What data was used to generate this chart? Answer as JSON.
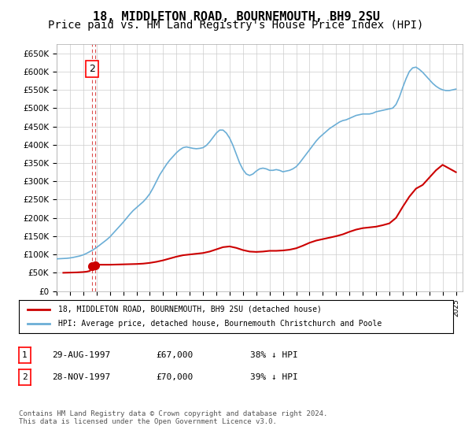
{
  "title": "18, MIDDLETON ROAD, BOURNEMOUTH, BH9 2SU",
  "subtitle": "Price paid vs. HM Land Registry's House Price Index (HPI)",
  "title_fontsize": 11,
  "subtitle_fontsize": 10,
  "hpi_color": "#6baed6",
  "price_color": "#cc0000",
  "grid_color": "#cccccc",
  "bg_color": "#ffffff",
  "ylim": [
    0,
    675000
  ],
  "yticks": [
    0,
    50000,
    100000,
    150000,
    200000,
    250000,
    300000,
    350000,
    400000,
    450000,
    500000,
    550000,
    600000,
    650000
  ],
  "ytick_labels": [
    "£0",
    "£50K",
    "£100K",
    "£150K",
    "£200K",
    "£250K",
    "£300K",
    "£350K",
    "£400K",
    "£450K",
    "£500K",
    "£550K",
    "£600K",
    "£650K"
  ],
  "xlim_start": 1995.0,
  "xlim_end": 2025.5,
  "sale1_date": 1997.66,
  "sale1_price": 67000,
  "sale1_label": "1",
  "sale2_date": 1997.91,
  "sale2_price": 70000,
  "sale2_label": "2",
  "legend_line1": "18, MIDDLETON ROAD, BOURNEMOUTH, BH9 2SU (detached house)",
  "legend_line2": "HPI: Average price, detached house, Bournemouth Christchurch and Poole",
  "table_rows": [
    {
      "num": "1",
      "date": "29-AUG-1997",
      "price": "£67,000",
      "hpi": "38% ↓ HPI"
    },
    {
      "num": "2",
      "date": "28-NOV-1997",
      "price": "£70,000",
      "hpi": "39% ↓ HPI"
    }
  ],
  "footnote": "Contains HM Land Registry data © Crown copyright and database right 2024.\nThis data is licensed under the Open Government Licence v3.0.",
  "hpi_x": [
    1995.0,
    1995.25,
    1995.5,
    1995.75,
    1996.0,
    1996.25,
    1996.5,
    1996.75,
    1997.0,
    1997.25,
    1997.5,
    1997.75,
    1998.0,
    1998.25,
    1998.5,
    1998.75,
    1999.0,
    1999.25,
    1999.5,
    1999.75,
    2000.0,
    2000.25,
    2000.5,
    2000.75,
    2001.0,
    2001.25,
    2001.5,
    2001.75,
    2002.0,
    2002.25,
    2002.5,
    2002.75,
    2003.0,
    2003.25,
    2003.5,
    2003.75,
    2004.0,
    2004.25,
    2004.5,
    2004.75,
    2005.0,
    2005.25,
    2005.5,
    2005.75,
    2006.0,
    2006.25,
    2006.5,
    2006.75,
    2007.0,
    2007.25,
    2007.5,
    2007.75,
    2008.0,
    2008.25,
    2008.5,
    2008.75,
    2009.0,
    2009.25,
    2009.5,
    2009.75,
    2010.0,
    2010.25,
    2010.5,
    2010.75,
    2011.0,
    2011.25,
    2011.5,
    2011.75,
    2012.0,
    2012.25,
    2012.5,
    2012.75,
    2013.0,
    2013.25,
    2013.5,
    2013.75,
    2014.0,
    2014.25,
    2014.5,
    2014.75,
    2015.0,
    2015.25,
    2015.5,
    2015.75,
    2016.0,
    2016.25,
    2016.5,
    2016.75,
    2017.0,
    2017.25,
    2017.5,
    2017.75,
    2018.0,
    2018.25,
    2018.5,
    2018.75,
    2019.0,
    2019.25,
    2019.5,
    2019.75,
    2020.0,
    2020.25,
    2020.5,
    2020.75,
    2021.0,
    2021.25,
    2021.5,
    2021.75,
    2022.0,
    2022.25,
    2022.5,
    2022.75,
    2023.0,
    2023.25,
    2023.5,
    2023.75,
    2024.0,
    2024.25,
    2024.5,
    2024.75,
    2025.0
  ],
  "hpi_y": [
    88000,
    88500,
    89000,
    89500,
    90500,
    92000,
    94000,
    96000,
    99000,
    103000,
    108000,
    113000,
    119000,
    126000,
    133000,
    140000,
    148000,
    158000,
    168000,
    178000,
    188000,
    199000,
    210000,
    220000,
    228000,
    236000,
    244000,
    254000,
    266000,
    282000,
    300000,
    318000,
    332000,
    346000,
    358000,
    368000,
    378000,
    386000,
    392000,
    394000,
    392000,
    390000,
    389000,
    390000,
    392000,
    398000,
    408000,
    420000,
    432000,
    440000,
    440000,
    432000,
    418000,
    398000,
    374000,
    350000,
    332000,
    320000,
    316000,
    320000,
    328000,
    334000,
    336000,
    334000,
    330000,
    330000,
    332000,
    330000,
    326000,
    328000,
    330000,
    334000,
    340000,
    350000,
    362000,
    374000,
    386000,
    398000,
    410000,
    420000,
    428000,
    436000,
    444000,
    450000,
    456000,
    462000,
    466000,
    468000,
    472000,
    476000,
    480000,
    482000,
    484000,
    484000,
    484000,
    486000,
    490000,
    492000,
    494000,
    496000,
    498000,
    500000,
    510000,
    530000,
    556000,
    580000,
    600000,
    610000,
    612000,
    606000,
    598000,
    588000,
    578000,
    568000,
    560000,
    554000,
    550000,
    548000,
    548000,
    550000,
    552000
  ],
  "price_x": [
    1995.5,
    1996.0,
    1996.5,
    1997.0,
    1997.25,
    1997.5,
    1997.66,
    1997.91,
    1998.0,
    1998.5,
    1999.0,
    1999.5,
    2000.0,
    2000.5,
    2001.0,
    2001.5,
    2002.0,
    2002.5,
    2003.0,
    2003.5,
    2004.0,
    2004.25,
    2004.5,
    2005.0,
    2005.5,
    2006.0,
    2006.5,
    2007.0,
    2007.5,
    2008.0,
    2008.5,
    2009.0,
    2009.5,
    2010.0,
    2010.5,
    2011.0,
    2011.5,
    2012.0,
    2012.5,
    2013.0,
    2013.5,
    2014.0,
    2014.5,
    2015.0,
    2015.5,
    2016.0,
    2016.5,
    2017.0,
    2017.5,
    2018.0,
    2018.5,
    2019.0,
    2019.5,
    2020.0,
    2020.5,
    2021.0,
    2021.5,
    2022.0,
    2022.5,
    2023.0,
    2023.5,
    2024.0,
    2024.5,
    2025.0
  ],
  "price_y": [
    50000,
    50500,
    51000,
    52000,
    53000,
    55000,
    67000,
    70000,
    72000,
    72000,
    72000,
    72500,
    73000,
    73500,
    74000,
    75000,
    77000,
    80000,
    84000,
    89000,
    94000,
    96000,
    98000,
    100000,
    102000,
    104000,
    108000,
    114000,
    120000,
    122000,
    118000,
    112000,
    108000,
    107000,
    108000,
    110000,
    110000,
    111000,
    113000,
    117000,
    124000,
    132000,
    138000,
    142000,
    146000,
    150000,
    155000,
    162000,
    168000,
    172000,
    174000,
    176000,
    180000,
    185000,
    200000,
    230000,
    258000,
    280000,
    290000,
    310000,
    330000,
    345000,
    335000,
    325000
  ]
}
